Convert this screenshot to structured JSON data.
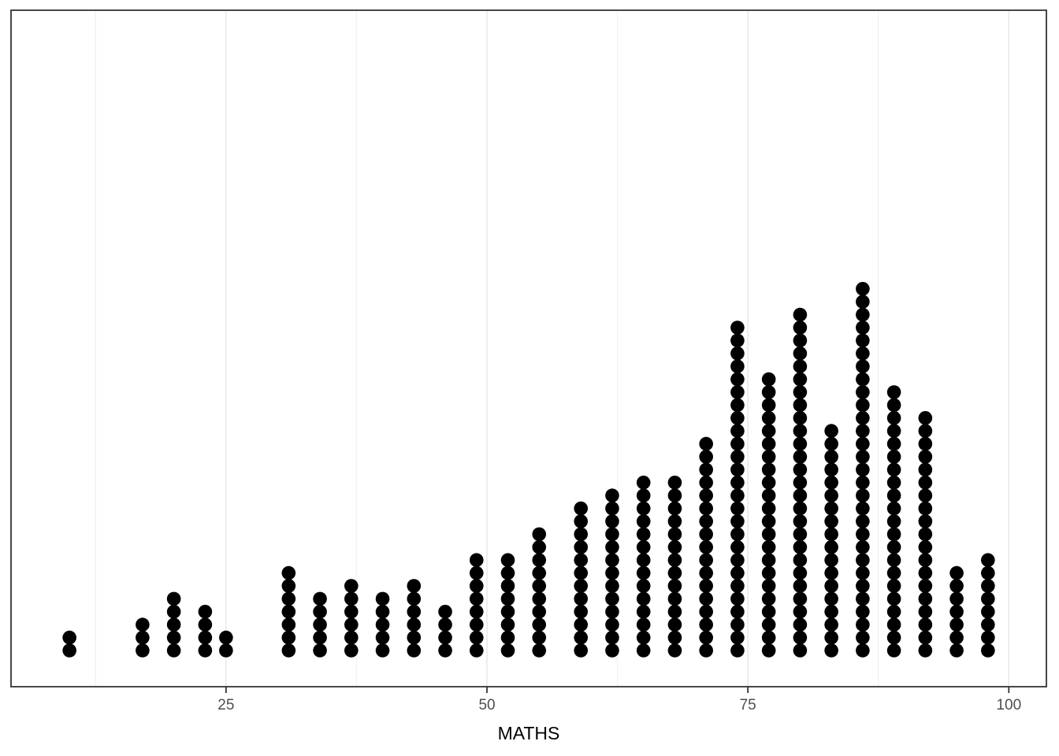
{
  "chart_data": {
    "type": "dotplot",
    "title": "",
    "xlabel": "MATHS",
    "ylabel": "",
    "x_tick_labels": [
      "25",
      "50",
      "75",
      "100"
    ],
    "x_ticks": [
      25,
      50,
      75,
      100
    ],
    "x_minor_gridlines": [
      12.5,
      37.5,
      62.5,
      87.5
    ],
    "xlim": [
      4.4,
      103.6
    ],
    "grid": "on",
    "legend": "none",
    "total_points": 322,
    "x": [
      10,
      17,
      20,
      23,
      25,
      31,
      34,
      37,
      40,
      43,
      46,
      49,
      52,
      55,
      59,
      62,
      65,
      68,
      71,
      74,
      77,
      80,
      83,
      86,
      89,
      92,
      95,
      98
    ],
    "counts": [
      2,
      3,
      5,
      4,
      2,
      7,
      5,
      6,
      5,
      6,
      4,
      8,
      8,
      10,
      12,
      13,
      14,
      14,
      17,
      26,
      22,
      27,
      18,
      29,
      21,
      19,
      7,
      8
    ]
  },
  "colors": {
    "dot": "#000000",
    "background": "#ffffff",
    "panel_background": "#ffffff",
    "panel_border": "#333333",
    "grid_major": "#e4e4e4",
    "grid_minor": "#f2f2f2",
    "tick_mark": "#333333",
    "tick_label": "#4d4d4d",
    "axis_title": "#000000"
  }
}
